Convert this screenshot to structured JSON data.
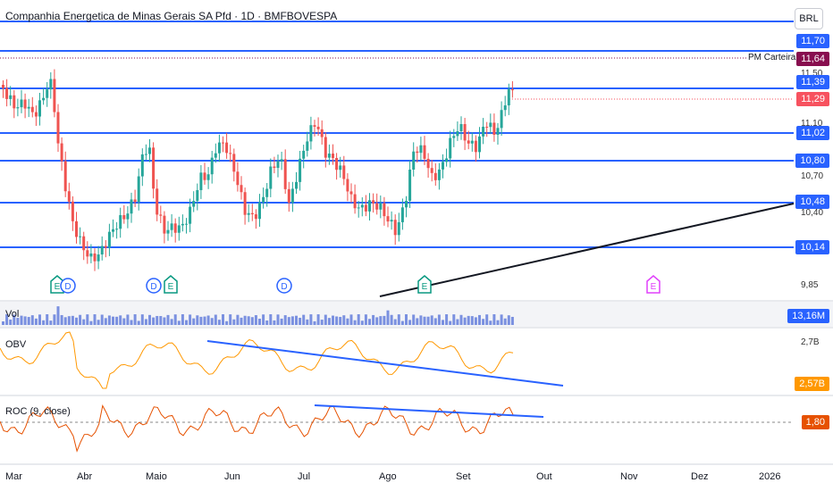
{
  "title": "Companhia Energetica de Minas Gerais SA Pfd · 1D · BMFBOVESPA",
  "currency_button": "BRL",
  "price_axis_ticks": [
    "11,50",
    "11,10",
    "10,70",
    "10,40",
    "9,85"
  ],
  "horizontal_levels": [
    {
      "value": "11,70",
      "color": "#2962ff"
    },
    {
      "value": "11,39",
      "color": "#2962ff"
    },
    {
      "value": "11,02",
      "color": "#2962ff"
    },
    {
      "value": "10,80",
      "color": "#2962ff"
    },
    {
      "value": "10,48",
      "color": "#2962ff"
    },
    {
      "value": "10,14",
      "color": "#2962ff"
    }
  ],
  "pm_carteira": {
    "label": "PM Carteira",
    "value": "11,64",
    "color": "#880e4f"
  },
  "last_price": {
    "value": "11,29",
    "color": "#f7525f"
  },
  "events": [
    {
      "label": "E",
      "color": "#089981"
    },
    {
      "label": "D",
      "color": "#2962ff"
    },
    {
      "label": "D",
      "color": "#2962ff"
    },
    {
      "label": "E",
      "color": "#089981"
    },
    {
      "label": "D",
      "color": "#2962ff"
    },
    {
      "label": "E",
      "color": "#089981"
    },
    {
      "label": "E",
      "color": "#e040fb"
    }
  ],
  "volume": {
    "title": "Vol",
    "value": "13,16M",
    "color": "#2962ff"
  },
  "obv": {
    "title": "OBV",
    "axis_label": "2,7B",
    "value": "2,57B",
    "color": "#ff9800"
  },
  "roc": {
    "title": "ROC (9, close)",
    "value": "1,80",
    "color": "#e65100"
  },
  "months": [
    "Mar",
    "Abr",
    "Maio",
    "Jun",
    "Jul",
    "Ago",
    "Set",
    "Out",
    "Nov",
    "Dez",
    "2026"
  ],
  "colors": {
    "up": "#26a69a",
    "down": "#ef5350",
    "line": "#2962ff",
    "trend": "#131722"
  }
}
